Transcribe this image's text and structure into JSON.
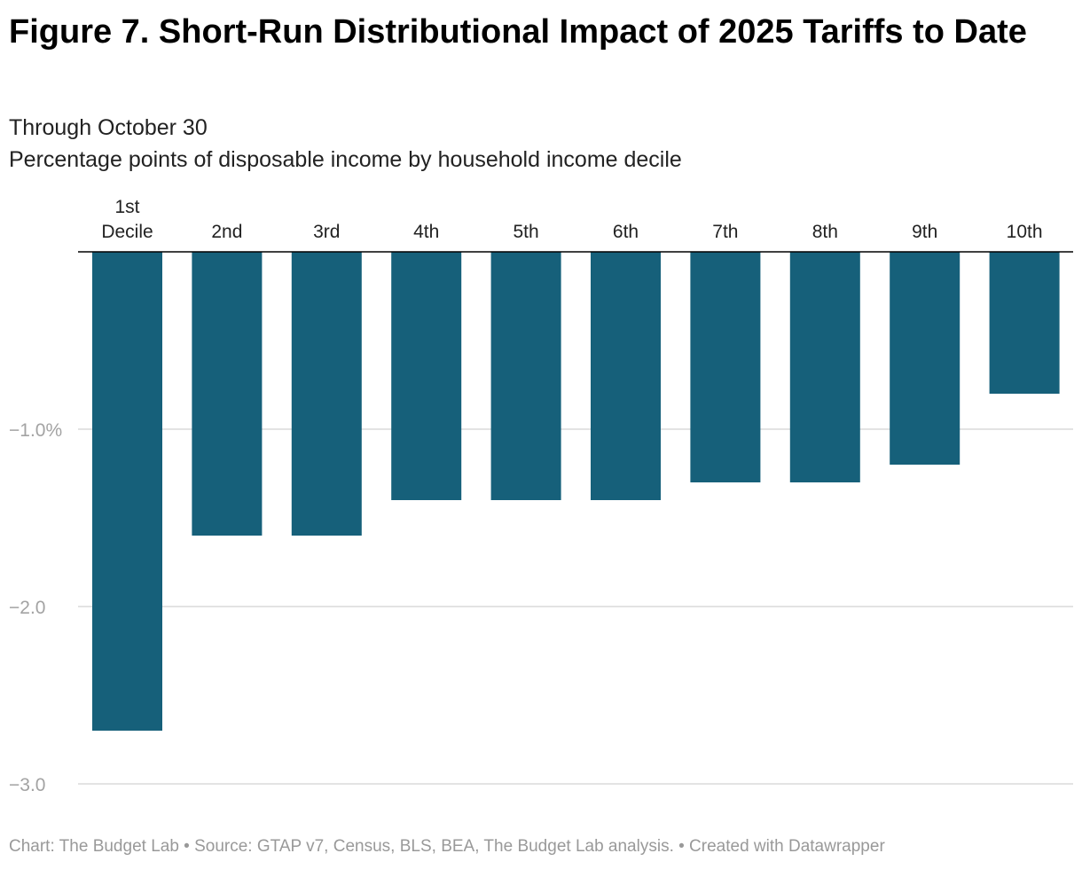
{
  "title": "Figure 7. Short-Run Distributional Impact of 2025 Tariffs to Date",
  "subtitle1": "Through October 30",
  "subtitle2": "Percentage points of disposable income by household income decile",
  "footer": "Chart: The Budget Lab • Source: GTAP v7, Census, BLS, BEA, The Budget Lab analysis. • Created with Datawrapper",
  "chart_data": {
    "type": "bar",
    "orientation": "vertical",
    "categories": [
      "1st Decile",
      "2nd",
      "3rd",
      "4th",
      "5th",
      "6th",
      "7th",
      "8th",
      "9th",
      "10th"
    ],
    "values": [
      -2.7,
      -1.6,
      -1.6,
      -1.4,
      -1.4,
      -1.4,
      -1.3,
      -1.3,
      -1.2,
      -0.8
    ],
    "ylim": [
      -3.0,
      0
    ],
    "yticks": [
      -1.0,
      -2.0,
      -3.0
    ],
    "ytick_labels": [
      "−1.0%",
      "−2.0",
      "−3.0"
    ],
    "grid": true,
    "color": "#16607a"
  }
}
